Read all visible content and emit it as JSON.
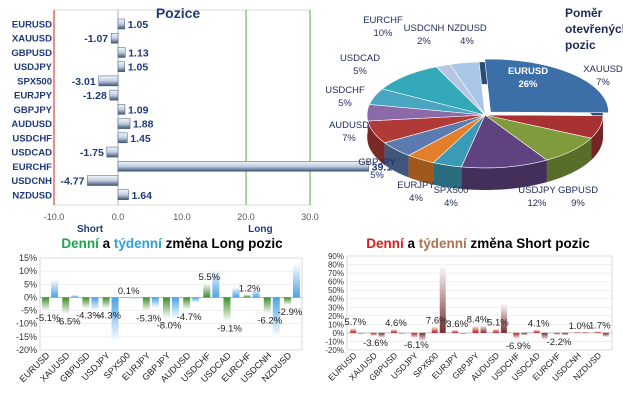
{
  "chart_data": [
    {
      "type": "bar",
      "orientation": "horizontal",
      "title": "Pozice",
      "categories": [
        "EURUSD",
        "XAUUSD",
        "GBPUSD",
        "USDJPY",
        "SPX500",
        "EURJPY",
        "GBPJPY",
        "AUDUSD",
        "USDCHF",
        "USDCAD",
        "EURCHF",
        "USDCNH",
        "NZDUSD"
      ],
      "values": [
        1.05,
        -1.07,
        1.13,
        1.05,
        -3.01,
        -1.28,
        1.09,
        1.88,
        1.45,
        -1.75,
        39.16,
        -4.77,
        1.64
      ],
      "value_labels": [
        "1.05",
        "-1.07",
        "1.13",
        "1.05",
        "-3.01",
        "-1.28",
        "1.09",
        "1.88",
        "1.45",
        "-1.75",
        "39.16",
        "-4.77",
        "1.64"
      ],
      "xlim": [
        -10,
        30
      ],
      "xticks": [
        "-10.0",
        "0.0",
        "10.0",
        "20.0",
        "30.0"
      ],
      "annotations": {
        "left": "Short",
        "right": "Long"
      }
    },
    {
      "type": "pie",
      "title": "Poměr otevřených pozic",
      "labels": [
        "EURUSD",
        "XAUUSD",
        "GBPUSD",
        "USDJPY",
        "SPX500",
        "EURJPY",
        "GBPJPY",
        "AUDUSD",
        "USDCHF",
        "USDCAD",
        "EURCHF",
        "USDCNH",
        "NZDUSD"
      ],
      "values": [
        26,
        7,
        9,
        12,
        4,
        4,
        5,
        7,
        5,
        5,
        10,
        2,
        4
      ],
      "value_labels": [
        "26%",
        "7%",
        "9%",
        "12%",
        "4%",
        "4%",
        "5%",
        "7%",
        "5%",
        "5%",
        "10%",
        "2%",
        "4%"
      ],
      "colors": [
        "#3c6ea7",
        "#a83232",
        "#7f9b3c",
        "#5f4380",
        "#3b9bb6",
        "#e37f2a",
        "#5b7bb0",
        "#b03a37",
        "#8a6aa8",
        "#4aa6c0",
        "#32a8b8",
        "#b7c7e3",
        "#a8c7e8"
      ]
    },
    {
      "type": "bar",
      "title_parts": [
        "Denní",
        " a ",
        "týdenní",
        " změna Long pozic"
      ],
      "title_colors": [
        "#1aa84a",
        "#000000",
        "#2fa0d8",
        "#000000"
      ],
      "categories": [
        "EURUSD",
        "XAUUSD",
        "GBPUSD",
        "USDJPY",
        "SPX500",
        "EURJPY",
        "GBPJPY",
        "AUDUSD",
        "USDCHF",
        "USDCAD",
        "EURCHF",
        "USDCNH",
        "NZDUSD"
      ],
      "series": [
        {
          "values": [
            -5.1,
            -6.5,
            -4.3,
            -4.3,
            0.1,
            -5.3,
            -8.0,
            -4.7,
            5.5,
            -9.1,
            1.2,
            -6.2,
            -2.9
          ]
        },
        {
          "values": [
            7,
            1,
            -5,
            -17,
            0,
            -4,
            -8,
            -2,
            11,
            4,
            3,
            -15,
            13
          ]
        }
      ],
      "value_labels": [
        "-5.1%",
        "-6.5%",
        "-4.3%",
        "-4.3%",
        "0.1%",
        "-5.3%",
        "-8.0%",
        "-4.7%",
        "5.5%",
        "-9.1%",
        "1.2%",
        "-6.2%",
        "-2.9%"
      ],
      "ylim": [
        -20,
        15
      ],
      "yticks": [
        "15%",
        "10%",
        "5%",
        "0%",
        "-5%",
        "-10%",
        "-15%",
        "-20%"
      ],
      "colors": [
        "#3e8f2a",
        "#4aa3e6"
      ]
    },
    {
      "type": "bar",
      "title_parts": [
        "Denní",
        " a ",
        "týdenní",
        " změna Short pozic"
      ],
      "title_colors": [
        "#d42020",
        "#000000",
        "#b07050",
        "#000000"
      ],
      "categories": [
        "EURUSD",
        "XAUUSD",
        "GBPUSD",
        "USDJPY",
        "SPX500",
        "EURJPY",
        "GBPJPY",
        "AUDUSD",
        "USDCHF",
        "USDCAD",
        "EURCHF",
        "USDCNH",
        "NZDUSD"
      ],
      "series": [
        {
          "values": [
            5.7,
            -3.6,
            4.6,
            -6.1,
            7.6,
            3.6,
            8.4,
            5.1,
            -6.9,
            4.1,
            -2.2,
            1.0,
            1.7
          ]
        },
        {
          "values": [
            0,
            -6,
            0,
            -10,
            80,
            0,
            9,
            35,
            -3,
            -8,
            -3,
            1,
            -5
          ]
        }
      ],
      "value_labels": [
        "5.7%",
        "-3.6%",
        "4.6%",
        "-6.1%",
        "7.6%",
        "3.6%",
        "8.4%",
        "5.1%",
        "-6.9%",
        "4.1%",
        "-2.2%",
        "1.0%",
        "1.7%"
      ],
      "ylim": [
        -20,
        90
      ],
      "yticks": [
        "90%",
        "80%",
        "70%",
        "60%",
        "50%",
        "40%",
        "30%",
        "20%",
        "10%",
        "0%",
        "-10%",
        "-20%"
      ],
      "colors": [
        "#c01818",
        "#8a3a3a"
      ]
    }
  ]
}
